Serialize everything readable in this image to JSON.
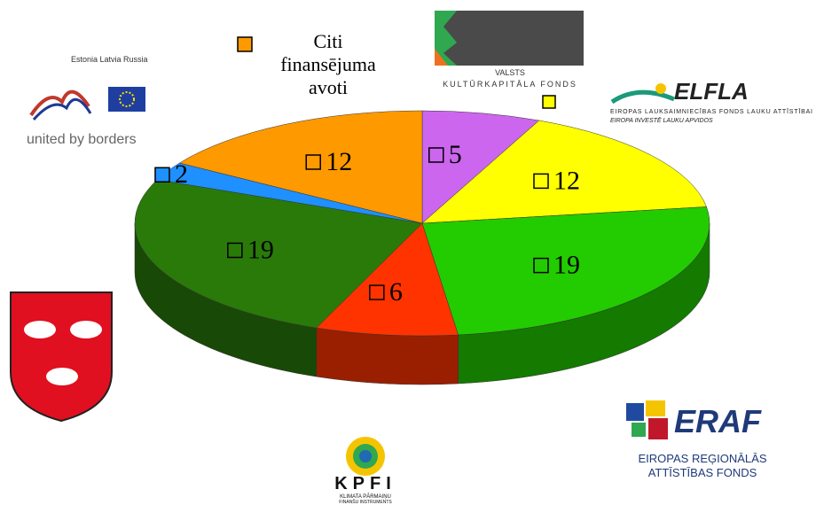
{
  "chart_data": {
    "type": "pie3d",
    "categories": [
      null,
      null,
      null,
      null,
      null,
      null,
      "Citi finansējuma avoti"
    ],
    "values": [
      5,
      12,
      19,
      6,
      19,
      2,
      12
    ],
    "colors": [
      "#cc66ee",
      "#ffff00",
      "#22cc00",
      "#ff3300",
      "#2a7a0a",
      "#1e90ff",
      "#ff9900"
    ]
  },
  "logos": {
    "estlatrus": {
      "countries": "Estonia Latvia Russia",
      "slogan": "united by borders"
    },
    "vkf": {
      "line1": "VALSTS",
      "line2": "KULTŪRKAPITĀLA FONDS"
    },
    "elfla": {
      "name": "ELFLA",
      "line1": "EIROPAS LAUKSAIMNIECĪBAS FONDS LAUKU ATTĪSTĪBAI",
      "line2": "EIROPA INVESTĒ LAUKU APVIDOS"
    },
    "eraf": {
      "name": "ERAF",
      "line1": "EIROPAS REĢIONĀLĀS",
      "line2": "ATTĪSTĪBAS FONDS"
    },
    "kpfi": {
      "name": "KPFI",
      "line1": "KLIMATA PĀRMAIŅU",
      "line2": "FINANŠU INSTRUMENTS"
    }
  }
}
